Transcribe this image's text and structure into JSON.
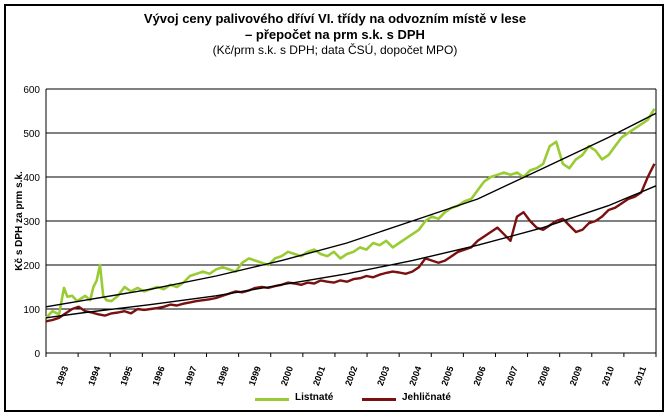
{
  "chart_data": {
    "type": "line",
    "title": "Vývoj ceny palivového dříví VI. třídy na odvozním místě v lese",
    "title_line2": "– přepočet na prm s.k. s DPH",
    "subtitle": "(Kč/prm s.k. s DPH; data ČSÚ, dopočet MPO)",
    "ylabel": "Kč s DPH za prm s.k.",
    "xlabel": "",
    "ylim": [
      0,
      600
    ],
    "xlim": [
      1992.8,
      2011.45
    ],
    "yticks": [
      0,
      100,
      200,
      300,
      400,
      500,
      600
    ],
    "xticks": [
      "1993",
      "1994",
      "1995",
      "1996",
      "1997",
      "1998",
      "1999",
      "2000",
      "2001",
      "2002",
      "2003",
      "2004",
      "2005",
      "2006",
      "2007",
      "2008",
      "2009",
      "2010",
      "2011"
    ],
    "grid": true,
    "legend_position": "bottom",
    "series": [
      {
        "name": "Listnaté",
        "color": "#99cc33",
        "x": [
          1992.8,
          1993.0,
          1993.2,
          1993.35,
          1993.45,
          1993.6,
          1993.75,
          1993.9,
          1994.0,
          1994.15,
          1994.25,
          1994.35,
          1994.45,
          1994.55,
          1994.65,
          1994.8,
          1995.0,
          1995.2,
          1995.4,
          1995.6,
          1995.8,
          1996.0,
          1996.2,
          1996.4,
          1996.6,
          1996.8,
          1997.0,
          1997.2,
          1997.4,
          1997.6,
          1997.8,
          1998.0,
          1998.2,
          1998.4,
          1998.6,
          1998.8,
          1999.0,
          1999.2,
          1999.4,
          1999.6,
          1999.8,
          2000.0,
          2000.2,
          2000.4,
          2000.6,
          2000.8,
          2001.0,
          2001.2,
          2001.4,
          2001.6,
          2001.8,
          2002.0,
          2002.2,
          2002.4,
          2002.6,
          2002.8,
          2003.0,
          2003.2,
          2003.4,
          2003.6,
          2003.8,
          2004.0,
          2004.2,
          2004.4,
          2004.6,
          2004.8,
          2005.0,
          2005.2,
          2005.4,
          2005.6,
          2005.8,
          2006.0,
          2006.2,
          2006.4,
          2006.6,
          2006.8,
          2007.0,
          2007.2,
          2007.4,
          2007.6,
          2007.8,
          2008.0,
          2008.2,
          2008.4,
          2008.6,
          2008.8,
          2009.0,
          2009.2,
          2009.4,
          2009.6,
          2009.8,
          2010.0,
          2010.2,
          2010.4,
          2010.6,
          2010.8,
          2011.0,
          2011.2,
          2011.4
        ],
        "values": [
          80,
          95,
          88,
          148,
          128,
          130,
          118,
          125,
          130,
          120,
          150,
          165,
          200,
          130,
          120,
          118,
          130,
          150,
          140,
          148,
          140,
          145,
          150,
          145,
          155,
          150,
          160,
          175,
          180,
          185,
          180,
          190,
          195,
          190,
          185,
          205,
          215,
          210,
          205,
          200,
          215,
          220,
          230,
          225,
          220,
          230,
          235,
          225,
          220,
          230,
          215,
          225,
          230,
          240,
          235,
          250,
          245,
          255,
          240,
          250,
          260,
          270,
          280,
          300,
          310,
          305,
          320,
          330,
          335,
          345,
          350,
          370,
          390,
          400,
          405,
          410,
          405,
          410,
          400,
          415,
          420,
          430,
          470,
          480,
          430,
          420,
          440,
          450,
          470,
          460,
          440,
          450,
          470,
          490,
          500,
          510,
          520,
          530,
          555
        ]
      },
      {
        "name": "Jehličnaté",
        "color": "#7a1010",
        "x": [
          1992.8,
          1993.0,
          1993.2,
          1993.4,
          1993.6,
          1993.8,
          1994.0,
          1994.2,
          1994.4,
          1994.6,
          1994.8,
          1995.0,
          1995.2,
          1995.4,
          1995.6,
          1995.8,
          1996.0,
          1996.2,
          1996.4,
          1996.6,
          1996.8,
          1997.0,
          1997.2,
          1997.4,
          1997.6,
          1997.8,
          1998.0,
          1998.2,
          1998.4,
          1998.6,
          1998.8,
          1999.0,
          1999.2,
          1999.4,
          1999.6,
          1999.8,
          2000.0,
          2000.2,
          2000.4,
          2000.6,
          2000.8,
          2001.0,
          2001.2,
          2001.4,
          2001.6,
          2001.8,
          2002.0,
          2002.2,
          2002.4,
          2002.6,
          2002.8,
          2003.0,
          2003.2,
          2003.4,
          2003.6,
          2003.8,
          2004.0,
          2004.2,
          2004.4,
          2004.6,
          2004.8,
          2005.0,
          2005.2,
          2005.4,
          2005.6,
          2005.8,
          2006.0,
          2006.2,
          2006.4,
          2006.6,
          2006.8,
          2007.0,
          2007.2,
          2007.4,
          2007.6,
          2007.8,
          2008.0,
          2008.2,
          2008.4,
          2008.6,
          2008.8,
          2009.0,
          2009.2,
          2009.4,
          2009.6,
          2009.8,
          2010.0,
          2010.2,
          2010.4,
          2010.6,
          2010.8,
          2011.0,
          2011.2,
          2011.4
        ],
        "values": [
          72,
          75,
          80,
          90,
          100,
          105,
          95,
          92,
          88,
          85,
          90,
          92,
          95,
          90,
          100,
          98,
          100,
          102,
          105,
          110,
          108,
          112,
          115,
          118,
          120,
          122,
          125,
          130,
          135,
          140,
          138,
          142,
          148,
          150,
          148,
          152,
          155,
          160,
          158,
          155,
          160,
          158,
          165,
          162,
          160,
          165,
          162,
          168,
          170,
          175,
          172,
          178,
          182,
          185,
          183,
          180,
          185,
          195,
          215,
          210,
          205,
          210,
          220,
          230,
          235,
          240,
          255,
          265,
          275,
          285,
          270,
          255,
          310,
          320,
          300,
          285,
          280,
          290,
          300,
          305,
          290,
          275,
          280,
          295,
          300,
          310,
          325,
          330,
          340,
          350,
          355,
          365,
          400,
          430
        ]
      }
    ],
    "trendlines": [
      {
        "color": "#000000",
        "x": [
          1992.8,
          1994,
          1996,
          1998,
          2000,
          2002,
          2004,
          2006,
          2008,
          2010,
          2011.45
        ],
        "values": [
          105,
          120,
          145,
          175,
          210,
          250,
          300,
          350,
          420,
          490,
          545
        ]
      },
      {
        "color": "#000000",
        "x": [
          1992.8,
          1994,
          1996,
          1998,
          2000,
          2002,
          2004,
          2006,
          2008,
          2010,
          2011.45
        ],
        "values": [
          80,
          92,
          110,
          130,
          155,
          180,
          210,
          245,
          285,
          335,
          380
        ]
      }
    ]
  }
}
